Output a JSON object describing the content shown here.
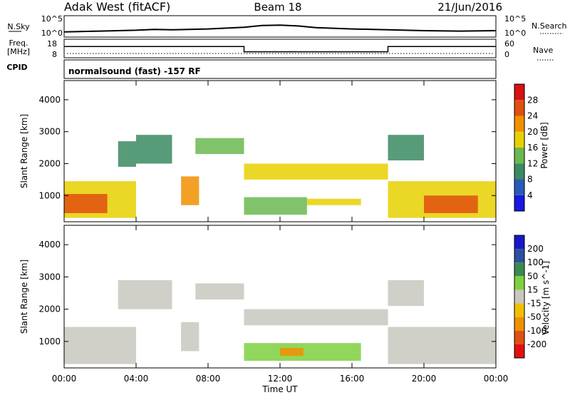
{
  "header": {
    "station": "Adak West (fitACF)",
    "beam": "Beam 18",
    "date": "21/Jun/2016"
  },
  "noise_panel": {
    "left_label": "N.Sky",
    "right_label": "N.Search",
    "tick_high": "10^5",
    "tick_low": "10^0"
  },
  "freq_panel": {
    "left_label_1": "Freq.",
    "left_label_2": "[MHz]",
    "right_label": "Nave",
    "left_ticks": [
      "18",
      "8"
    ],
    "right_ticks": [
      "60",
      "0"
    ]
  },
  "cpid_label": "CPID",
  "mode_text": "normalsound (fast) -157 RF",
  "chart_data": [
    {
      "type": "line",
      "name": "noise",
      "ylim": [
        0,
        5
      ],
      "x": [
        0,
        2,
        4,
        5,
        6,
        8,
        10,
        11,
        12,
        13,
        14,
        16,
        18,
        20,
        22,
        24
      ],
      "y": [
        1.2,
        1.4,
        1.6,
        1.8,
        1.7,
        1.9,
        2.3,
        2.7,
        2.8,
        2.6,
        2.2,
        1.9,
        1.7,
        1.5,
        1.4,
        1.5
      ]
    },
    {
      "type": "line",
      "name": "frequency",
      "ylim": [
        6,
        20
      ],
      "x": [
        0,
        10,
        10,
        18,
        18,
        24
      ],
      "y": [
        14.5,
        14.5,
        10.5,
        10.5,
        14.5,
        14.5
      ]
    },
    {
      "type": "heatmap",
      "name": "power",
      "xlabel": "",
      "ylabel": "Slant Range [km]",
      "xlim": [
        0,
        24
      ],
      "ylim": [
        180,
        4600
      ],
      "yticks": [
        1000,
        2000,
        3000,
        4000
      ],
      "colorbar": {
        "label": "Power [dB]",
        "ticks": [
          4,
          8,
          12,
          16,
          20,
          24,
          28
        ],
        "colors": [
          "#1818e0",
          "#2a5ab8",
          "#3b8a60",
          "#6ab850",
          "#e8d000",
          "#f09000",
          "#e05010",
          "#d81010"
        ]
      },
      "regions": [
        {
          "x": [
            0,
            4.0
          ],
          "y": [
            300,
            1450
          ],
          "v": 16
        },
        {
          "x": [
            0,
            2.4
          ],
          "y": [
            450,
            1050
          ],
          "v": 24
        },
        {
          "x": [
            3.0,
            4.0
          ],
          "y": [
            1900,
            2700
          ],
          "v": 8
        },
        {
          "x": [
            4.0,
            6.0
          ],
          "y": [
            2000,
            2900
          ],
          "v": 8
        },
        {
          "x": [
            6.5,
            7.5
          ],
          "y": [
            700,
            1600
          ],
          "v": 20
        },
        {
          "x": [
            7.3,
            10.0
          ],
          "y": [
            2300,
            2800
          ],
          "v": 12
        },
        {
          "x": [
            10.0,
            18.0
          ],
          "y": [
            1500,
            2000
          ],
          "v": 16
        },
        {
          "x": [
            10.0,
            13.5
          ],
          "y": [
            400,
            950
          ],
          "v": 12
        },
        {
          "x": [
            13.5,
            16.5
          ],
          "y": [
            700,
            900
          ],
          "v": 16
        },
        {
          "x": [
            18.0,
            20.0
          ],
          "y": [
            2100,
            2900
          ],
          "v": 8
        },
        {
          "x": [
            18.0,
            24.0
          ],
          "y": [
            300,
            1450
          ],
          "v": 16
        },
        {
          "x": [
            20.0,
            23.0
          ],
          "y": [
            450,
            1000
          ],
          "v": 24
        }
      ]
    },
    {
      "type": "heatmap",
      "name": "velocity",
      "xlabel": "Time UT",
      "ylabel": "Slant Range [km]",
      "xlim": [
        0,
        24
      ],
      "ylim": [
        180,
        4600
      ],
      "yticks": [
        1000,
        2000,
        3000,
        4000
      ],
      "xticks": [
        "00:00",
        "04:00",
        "08:00",
        "12:00",
        "16:00",
        "20:00",
        "00:00"
      ],
      "colorbar": {
        "label": "Velocity [m s^-1]",
        "ticks": [
          200,
          100,
          50,
          15,
          -15,
          -50,
          -100,
          -200
        ],
        "colors": [
          "#1818c8",
          "#2a50a0",
          "#3a8a50",
          "#7ed040",
          "#c8c8c0",
          "#f0c000",
          "#f09000",
          "#e05010",
          "#e01010"
        ]
      },
      "regions": [
        {
          "x": [
            0,
            4.0
          ],
          "y": [
            300,
            1450
          ],
          "v": 0
        },
        {
          "x": [
            3.0,
            6.0
          ],
          "y": [
            2000,
            2900
          ],
          "v": 0
        },
        {
          "x": [
            6.5,
            7.5
          ],
          "y": [
            700,
            1600
          ],
          "v": 0
        },
        {
          "x": [
            7.3,
            10.0
          ],
          "y": [
            2300,
            2800
          ],
          "v": 0
        },
        {
          "x": [
            10.0,
            18.0
          ],
          "y": [
            1500,
            2000
          ],
          "v": 0
        },
        {
          "x": [
            10.0,
            16.5
          ],
          "y": [
            400,
            950
          ],
          "v": 30
        },
        {
          "x": [
            12.0,
            13.3
          ],
          "y": [
            550,
            800
          ],
          "v": -60
        },
        {
          "x": [
            18.0,
            20.0
          ],
          "y": [
            2100,
            2900
          ],
          "v": 0
        },
        {
          "x": [
            18.0,
            24.0
          ],
          "y": [
            300,
            1450
          ],
          "v": 0
        }
      ]
    }
  ]
}
